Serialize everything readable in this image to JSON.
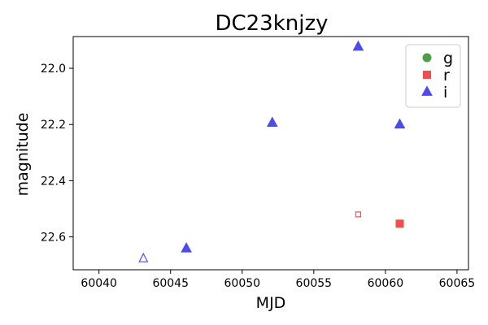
{
  "chart_data": {
    "type": "scatter",
    "title": "DC23knjzy",
    "xlabel": "MJD",
    "ylabel": "magnitude",
    "xlim": [
      60038.2,
      60065.8
    ],
    "ylim": [
      22.717,
      21.887
    ],
    "y_inverted": true,
    "xticks": [
      60040,
      60045,
      60050,
      60055,
      60060,
      60065
    ],
    "yticks": [
      22.0,
      22.2,
      22.4,
      22.6
    ],
    "ytick_labels": [
      "22.0",
      "22.2",
      "22.4",
      "22.6"
    ],
    "grid": false,
    "legend": {
      "placement": "top-right",
      "entries": [
        "g",
        "r",
        "i"
      ]
    },
    "colors": {
      "g": "#4aa04a",
      "r": "#f44c4c",
      "i": "#4b4bf0"
    },
    "series": [
      {
        "name": "g",
        "marker": "circle",
        "points": []
      },
      {
        "name": "r",
        "marker": "square",
        "points": [
          {
            "x": 60058.1,
            "y": 22.52,
            "filled": false
          },
          {
            "x": 60061.0,
            "y": 22.553,
            "filled": true
          }
        ]
      },
      {
        "name": "i",
        "marker": "triangle",
        "points": [
          {
            "x": 60043.1,
            "y": 22.677,
            "filled": false
          },
          {
            "x": 60046.1,
            "y": 22.641,
            "filled": true
          },
          {
            "x": 60052.1,
            "y": 22.194,
            "filled": true
          },
          {
            "x": 60058.1,
            "y": 21.923,
            "filled": true
          },
          {
            "x": 60061.0,
            "y": 22.2,
            "filled": true
          }
        ]
      }
    ]
  }
}
